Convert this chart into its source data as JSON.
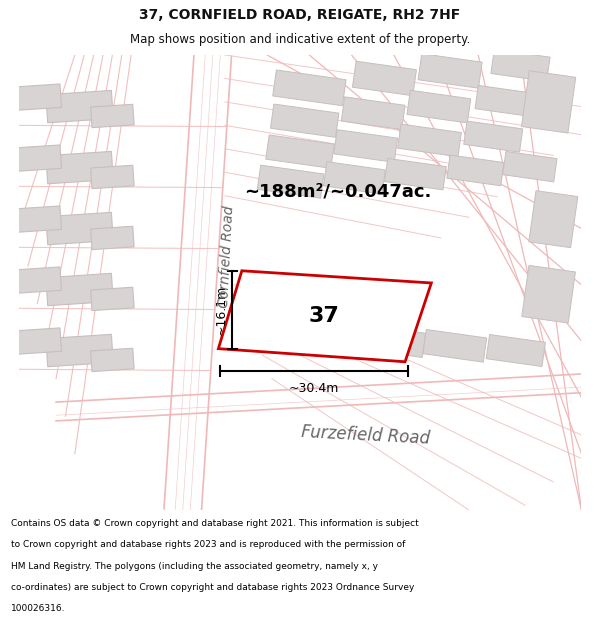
{
  "title_line1": "37, CORNFIELD ROAD, REIGATE, RH2 7HF",
  "title_line2": "Map shows position and indicative extent of the property.",
  "area_text": "~188m²/~0.047ac.",
  "property_number": "37",
  "width_label": "~30.4m",
  "height_label": "~16.1m",
  "road_label1": "Cornfield Road",
  "road_label2": "Furzefield Road",
  "footer_lines": [
    "Contains OS data © Crown copyright and database right 2021. This information is subject",
    "to Crown copyright and database rights 2023 and is reproduced with the permission of",
    "HM Land Registry. The polygons (including the associated geometry, namely x, y",
    "co-ordinates) are subject to Crown copyright and database rights 2023 Ordnance Survey",
    "100026316."
  ],
  "map_bg": "#f0eeee",
  "building_fill": "#d8d4d4",
  "building_edge": "#c8bebe",
  "road_line_color": "#f0b8b8",
  "property_outline_color": "#cc0000",
  "property_fill": "#ffffff",
  "text_color": "#000000",
  "road_label_color": "#666666",
  "title_color": "#111111"
}
